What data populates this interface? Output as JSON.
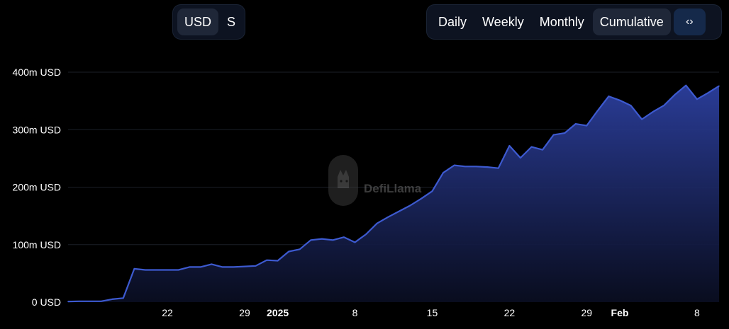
{
  "currency_toggle": {
    "options": [
      "USD",
      "S"
    ],
    "active": "USD"
  },
  "period_toggle": {
    "options": [
      "Daily",
      "Weekly",
      "Monthly",
      "Cumulative"
    ],
    "active": "Cumulative",
    "embed_icon": "code-brackets-icon"
  },
  "watermark": {
    "text": "DefiLlama",
    "icon": "llama-logo-icon"
  },
  "colors": {
    "line": "#3d5ad0",
    "area_top": "#2c3f9e",
    "area_bottom": "#0a0e22",
    "background": "#000000"
  },
  "chart_data": {
    "type": "area",
    "title": "",
    "xlabel": "",
    "ylabel": "",
    "unit": "USD",
    "ylim": [
      0,
      400000000
    ],
    "y_ticks": [
      {
        "value": 0,
        "label": "0 USD"
      },
      {
        "value": 100000000,
        "label": "100m USD"
      },
      {
        "value": 200000000,
        "label": "200m USD"
      },
      {
        "value": 300000000,
        "label": "300m USD"
      },
      {
        "value": 400000000,
        "label": "400m USD"
      }
    ],
    "x_range": [
      "2024-12-13",
      "2025-02-10"
    ],
    "x_ticks": [
      {
        "date": "2024-12-22",
        "label": "22",
        "bold": false
      },
      {
        "date": "2024-12-29",
        "label": "29",
        "bold": false
      },
      {
        "date": "2025-01-01",
        "label": "2025",
        "bold": true
      },
      {
        "date": "2025-01-08",
        "label": "8",
        "bold": false
      },
      {
        "date": "2025-01-15",
        "label": "15",
        "bold": false
      },
      {
        "date": "2025-01-22",
        "label": "22",
        "bold": false
      },
      {
        "date": "2025-01-29",
        "label": "29",
        "bold": false
      },
      {
        "date": "2025-02-01",
        "label": "Feb",
        "bold": true
      },
      {
        "date": "2025-02-08",
        "label": "8",
        "bold": false
      }
    ],
    "grid": true,
    "legend": "none",
    "series": [
      {
        "values": [
          [
            "2024-12-13",
            1000000
          ],
          [
            "2024-12-14",
            1500000
          ],
          [
            "2024-12-15",
            1500000
          ],
          [
            "2024-12-16",
            1500000
          ],
          [
            "2024-12-17",
            5000000
          ],
          [
            "2024-12-18",
            7000000
          ],
          [
            "2024-12-19",
            58000000
          ],
          [
            "2024-12-20",
            56000000
          ],
          [
            "2024-12-21",
            56000000
          ],
          [
            "2024-12-22",
            56000000
          ],
          [
            "2024-12-23",
            56000000
          ],
          [
            "2024-12-24",
            61000000
          ],
          [
            "2024-12-25",
            61000000
          ],
          [
            "2024-12-26",
            66000000
          ],
          [
            "2024-12-27",
            61000000
          ],
          [
            "2024-12-28",
            61000000
          ],
          [
            "2024-12-29",
            62000000
          ],
          [
            "2024-12-30",
            63000000
          ],
          [
            "2024-12-31",
            73000000
          ],
          [
            "2025-01-01",
            72000000
          ],
          [
            "2025-01-02",
            88000000
          ],
          [
            "2025-01-03",
            92000000
          ],
          [
            "2025-01-04",
            108000000
          ],
          [
            "2025-01-05",
            110000000
          ],
          [
            "2025-01-06",
            108000000
          ],
          [
            "2025-01-07",
            113000000
          ],
          [
            "2025-01-08",
            104000000
          ],
          [
            "2025-01-09",
            118000000
          ],
          [
            "2025-01-10",
            137000000
          ],
          [
            "2025-01-11",
            148000000
          ],
          [
            "2025-01-12",
            158000000
          ],
          [
            "2025-01-13",
            168000000
          ],
          [
            "2025-01-14",
            180000000
          ],
          [
            "2025-01-15",
            193000000
          ],
          [
            "2025-01-16",
            225000000
          ],
          [
            "2025-01-17",
            238000000
          ],
          [
            "2025-01-18",
            236000000
          ],
          [
            "2025-01-19",
            236000000
          ],
          [
            "2025-01-20",
            235000000
          ],
          [
            "2025-01-21",
            233000000
          ],
          [
            "2025-01-22",
            272000000
          ],
          [
            "2025-01-23",
            251000000
          ],
          [
            "2025-01-24",
            270000000
          ],
          [
            "2025-01-25",
            265000000
          ],
          [
            "2025-01-26",
            291000000
          ],
          [
            "2025-01-27",
            294000000
          ],
          [
            "2025-01-28",
            310000000
          ],
          [
            "2025-01-29",
            307000000
          ],
          [
            "2025-01-30",
            333000000
          ],
          [
            "2025-01-31",
            358000000
          ],
          [
            "2025-02-01",
            351000000
          ],
          [
            "2025-02-02",
            342000000
          ],
          [
            "2025-02-03",
            318000000
          ],
          [
            "2025-02-04",
            331000000
          ],
          [
            "2025-02-05",
            342000000
          ],
          [
            "2025-02-06",
            361000000
          ],
          [
            "2025-02-07",
            377000000
          ],
          [
            "2025-02-08",
            353000000
          ],
          [
            "2025-02-09",
            364000000
          ],
          [
            "2025-02-10",
            376000000
          ]
        ]
      }
    ]
  }
}
